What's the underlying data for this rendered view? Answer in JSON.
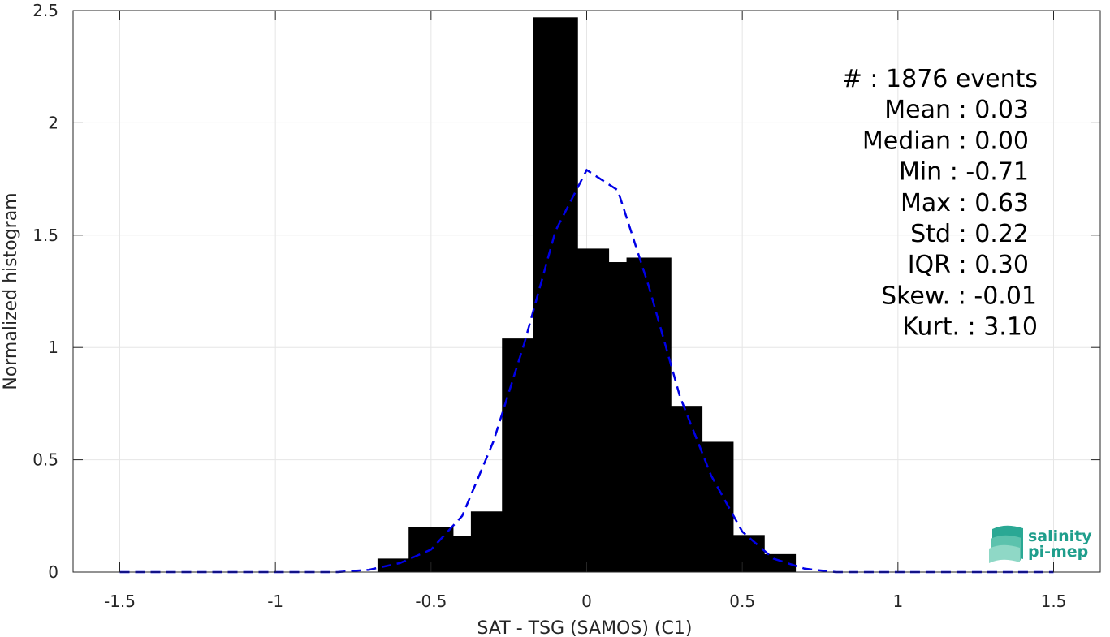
{
  "chart_data": {
    "type": "bar",
    "xlabel": "SAT - TSG (SAMOS) (C1)",
    "ylabel": "Normalized histogram",
    "xlim": [
      -1.65,
      1.65
    ],
    "ylim": [
      0,
      2.5
    ],
    "xticks": [
      -1.5,
      -1,
      -0.5,
      0,
      0.5,
      1,
      1.5
    ],
    "xtick_labels": [
      "-1.5",
      "-1",
      "-0.5",
      "0",
      "0.5",
      "1",
      "1.5"
    ],
    "yticks": [
      0,
      0.5,
      1,
      1.5,
      2,
      2.5
    ],
    "ytick_labels": [
      "0",
      "0.5",
      "1",
      "1.5",
      "2",
      "2.5"
    ],
    "grid": true,
    "series": [
      {
        "type": "bar",
        "color": "#000000",
        "x": [
          -0.6,
          -0.5,
          -0.4,
          -0.3,
          -0.2,
          -0.1,
          0.0,
          0.1,
          0.2,
          0.3,
          0.4,
          0.5,
          0.6
        ],
        "values": [
          0.06,
          0.2,
          0.16,
          0.27,
          1.04,
          2.47,
          1.44,
          1.38,
          1.4,
          0.74,
          0.58,
          0.165,
          0.08
        ]
      },
      {
        "type": "line",
        "style": "dashed",
        "color": "#0000e6",
        "x": [
          -1.5,
          -1.4,
          -1.3,
          -1.2,
          -1.1,
          -1.0,
          -0.9,
          -0.8,
          -0.7,
          -0.6,
          -0.5,
          -0.4,
          -0.3,
          -0.2,
          -0.1,
          0.0,
          0.1,
          0.2,
          0.3,
          0.4,
          0.5,
          0.6,
          0.7,
          0.8,
          0.9,
          1.0,
          1.1,
          1.2,
          1.3,
          1.4,
          1.5
        ],
        "values": [
          0,
          0,
          0,
          0,
          0,
          0,
          0,
          0,
          0.01,
          0.04,
          0.1,
          0.25,
          0.58,
          1.02,
          1.52,
          1.79,
          1.7,
          1.27,
          0.78,
          0.43,
          0.18,
          0.06,
          0.015,
          0,
          0,
          0,
          0,
          0,
          0,
          0,
          0
        ]
      }
    ],
    "stats": [
      "#  : 1876 events",
      "Mean : 0.03",
      "Median : 0.00",
      "Min : -0.71",
      "Max : 0.63",
      "Std : 0.22",
      "IQR : 0.30",
      "Skew. : -0.01",
      "Kurt. : 3.10"
    ],
    "stats_align": [
      "end",
      "end",
      "end",
      "end",
      "end",
      "end",
      "end",
      "start",
      "start"
    ]
  },
  "logo": {
    "line1": "salinity",
    "line2": "pi-mep"
  },
  "colors": {
    "axis": "#262626",
    "grid": "#e6e6e6",
    "bar": "#000000",
    "fit": "#0000e6",
    "logo": "#1f9e8c"
  }
}
